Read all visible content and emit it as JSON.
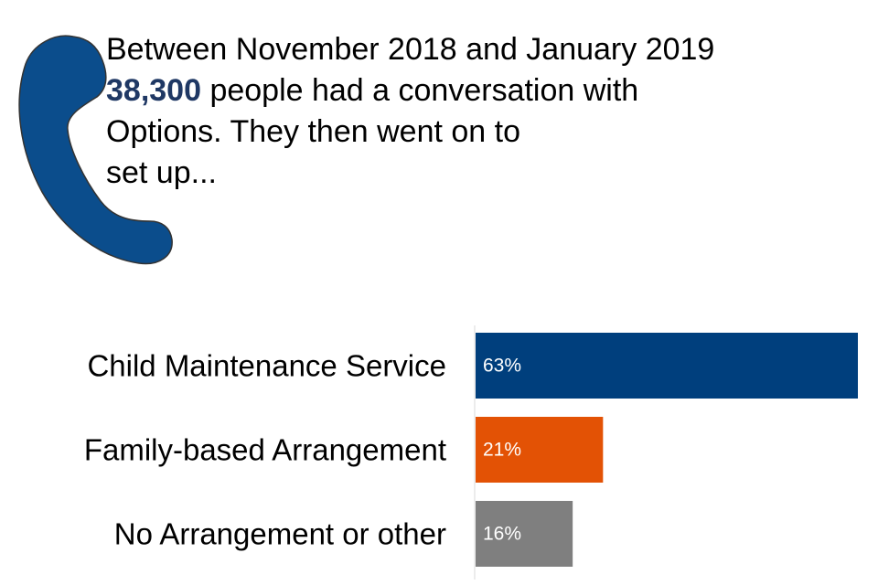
{
  "header": {
    "line1": "Between November 2018 and January 2019",
    "count": "38,300",
    "line2_rest": " people had a conversation with",
    "line3": "Options. They then went on to",
    "line4": "set up...",
    "highlight_color": "#1f3864"
  },
  "icon": {
    "name": "phone-icon",
    "color": "#0b4d8c"
  },
  "chart_data": {
    "type": "bar",
    "orientation": "horizontal",
    "categories": [
      "Child Maintenance Service",
      "Family-based Arrangement",
      "No Arrangement or other"
    ],
    "values": [
      63,
      21,
      16
    ],
    "value_labels": [
      "63%",
      "21%",
      "16%"
    ],
    "colors": [
      "#003f7d",
      "#e35205",
      "#7f7f7f"
    ],
    "xlim": [
      0,
      63
    ],
    "grid": false
  }
}
